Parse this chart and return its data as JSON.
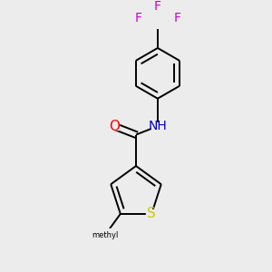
{
  "background_color": "#ececec",
  "bond_color": "#000000",
  "line_width": 1.4,
  "atom_colors": {
    "O": "#ff0000",
    "N": "#0000cc",
    "H": "#008080",
    "S": "#cccc00",
    "F": "#cc00cc",
    "C": "#000000"
  },
  "font_size": 10,
  "fig_width": 3.0,
  "fig_height": 3.0,
  "dpi": 100
}
